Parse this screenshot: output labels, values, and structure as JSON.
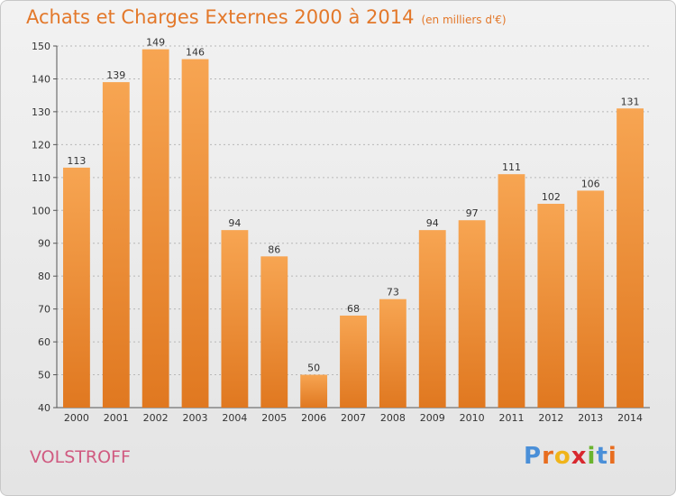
{
  "header": {
    "title": "Achats et Charges Externes 2000 à 2014",
    "subtitle": "(en milliers d'€)"
  },
  "footer": {
    "city": "VOLSTROFF",
    "logo": "Proxiti"
  },
  "colors": {
    "bar_light": "#f7a552",
    "bar_dark": "#e07820",
    "title": "#e3782a",
    "city": "#d05a80",
    "logo_letters": [
      "#4a8fd8",
      "#e86d1f",
      "#f0b41a",
      "#d8282f",
      "#6ab42e",
      "#4a8fd8",
      "#e86d1f"
    ]
  },
  "chart_data": {
    "type": "bar",
    "title": "Achats et Charges Externes 2000 à 2014",
    "subtitle": "(en milliers d'€)",
    "categories": [
      "2000",
      "2001",
      "2002",
      "2003",
      "2004",
      "2005",
      "2006",
      "2007",
      "2008",
      "2009",
      "2010",
      "2011",
      "2012",
      "2013",
      "2014"
    ],
    "values": [
      113,
      139,
      149,
      146,
      94,
      86,
      50,
      68,
      73,
      94,
      97,
      111,
      102,
      106,
      131
    ],
    "ylim": [
      40,
      150
    ],
    "yticks": [
      40,
      50,
      60,
      70,
      80,
      90,
      100,
      110,
      120,
      130,
      140,
      150
    ],
    "grid": true,
    "data_labels": true
  }
}
